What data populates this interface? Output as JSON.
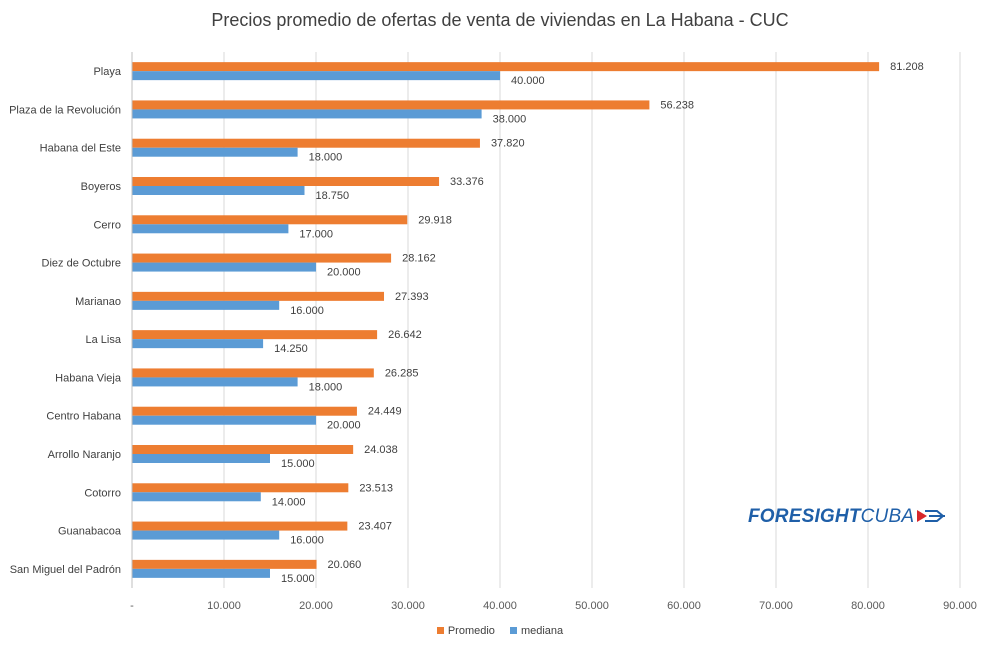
{
  "chart_data": {
    "type": "bar",
    "orientation": "horizontal",
    "title": "Precios promedio de ofertas de venta de viviendas en La Habana - CUC",
    "categories": [
      "Playa",
      "Plaza de la Revolución",
      "Habana del Este",
      "Boyeros",
      "Cerro",
      "Diez de Octubre",
      "Marianao",
      "La Lisa",
      "Habana Vieja",
      "Centro Habana",
      "Arrollo Naranjo",
      "Cotorro",
      "Guanabacoa",
      "San Miguel del Padrón"
    ],
    "series": [
      {
        "name": "Promedio",
        "color": "#ED7D31",
        "values": [
          81208,
          56238,
          37820,
          33376,
          29918,
          28162,
          27393,
          26642,
          26285,
          24449,
          24038,
          23513,
          23407,
          20060
        ],
        "labels": [
          "81.208",
          "56.238",
          "37.820",
          "33.376",
          "29.918",
          "28.162",
          "27.393",
          "26.642",
          "26.285",
          "24.449",
          "24.038",
          "23.513",
          "23.407",
          "20.060"
        ]
      },
      {
        "name": "mediana",
        "color": "#5B9BD5",
        "values": [
          40000,
          38000,
          18000,
          18750,
          17000,
          20000,
          16000,
          14250,
          18000,
          20000,
          15000,
          14000,
          16000,
          15000
        ],
        "labels": [
          "40.000",
          "38.000",
          "18.000",
          "18.750",
          "17.000",
          "20.000",
          "16.000",
          "14.250",
          "18.000",
          "20.000",
          "15.000",
          "14.000",
          "16.000",
          "15.000"
        ]
      }
    ],
    "xlim": [
      0,
      90000
    ],
    "xticks": [
      0,
      10000,
      20000,
      30000,
      40000,
      50000,
      60000,
      70000,
      80000,
      90000
    ],
    "xtick_labels": [
      "-",
      "10.000",
      "20.000",
      "30.000",
      "40.000",
      "50.000",
      "60.000",
      "70.000",
      "80.000",
      "90.000"
    ],
    "grid": true,
    "legend_position": "bottom"
  },
  "logo": {
    "text_bold": "FORESIGHT",
    "text_light": "CUBA"
  }
}
